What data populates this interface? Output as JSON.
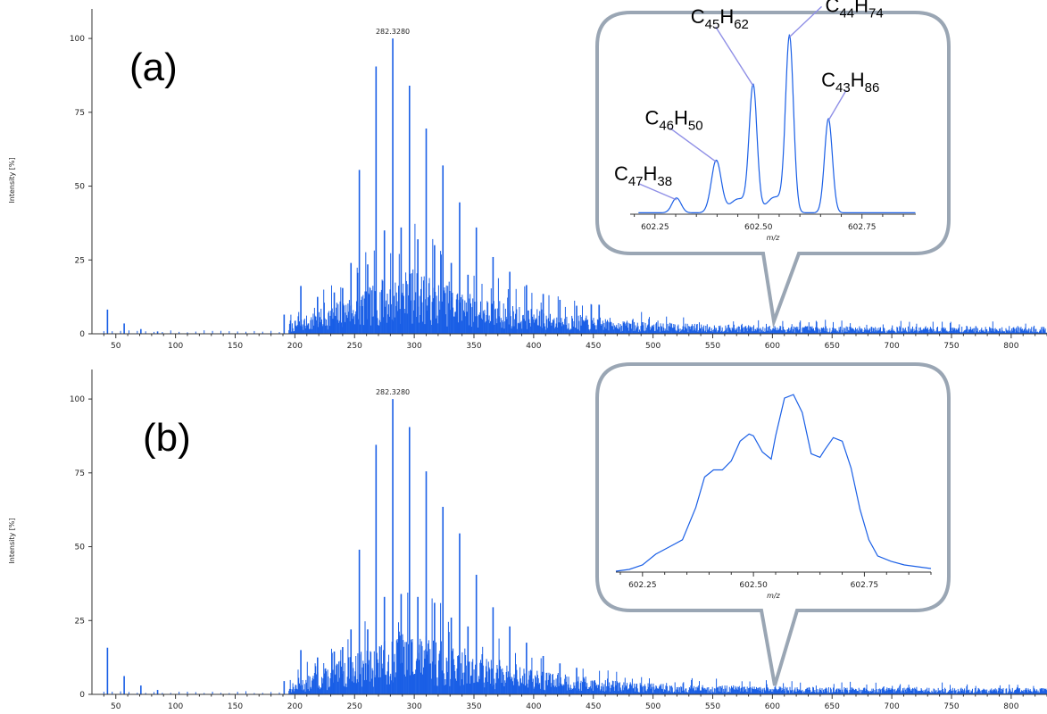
{
  "colors": {
    "spectrum": "#1a5fe6",
    "callout": "#9aa6b4",
    "leader": "#8f8fe6",
    "axis": "#333333"
  },
  "chart_data": [
    {
      "type": "bar",
      "panel_label": "(a)",
      "ylabel": "Intensity [%]",
      "xlabel": "",
      "xlim": [
        30,
        830
      ],
      "ylim": [
        0,
        110
      ],
      "xticks": [
        50,
        100,
        150,
        200,
        250,
        300,
        350,
        400,
        450,
        500,
        550,
        600,
        650,
        700,
        750,
        800
      ],
      "yticks": [
        0,
        25,
        50,
        75,
        100
      ],
      "base_peak_label": "282.3280",
      "seed": 7,
      "peaks": [
        {
          "mz": 43,
          "y": 8.2
        },
        {
          "mz": 57,
          "y": 3.5
        },
        {
          "mz": 71,
          "y": 1.6
        },
        {
          "mz": 85,
          "y": 0.8
        },
        {
          "mz": 191,
          "y": 6.5
        },
        {
          "mz": 205,
          "y": 16.2
        },
        {
          "mz": 219,
          "y": 12.5
        },
        {
          "mz": 233,
          "y": 14.0
        },
        {
          "mz": 240,
          "y": 15.5
        },
        {
          "mz": 247,
          "y": 24.0
        },
        {
          "mz": 254,
          "y": 55.5
        },
        {
          "mz": 261,
          "y": 23.5
        },
        {
          "mz": 268,
          "y": 90.5
        },
        {
          "mz": 275,
          "y": 35.0
        },
        {
          "mz": 282,
          "y": 100.0
        },
        {
          "mz": 289,
          "y": 36.0
        },
        {
          "mz": 296,
          "y": 84.0
        },
        {
          "mz": 303,
          "y": 32.0
        },
        {
          "mz": 310,
          "y": 69.5
        },
        {
          "mz": 317,
          "y": 30.0
        },
        {
          "mz": 324,
          "y": 57.0
        },
        {
          "mz": 331,
          "y": 24.0
        },
        {
          "mz": 338,
          "y": 44.5
        },
        {
          "mz": 345,
          "y": 20.0
        },
        {
          "mz": 352,
          "y": 36.0
        },
        {
          "mz": 366,
          "y": 26.0
        },
        {
          "mz": 380,
          "y": 21.0
        },
        {
          "mz": 394,
          "y": 16.5
        },
        {
          "mz": 408,
          "y": 13.5
        },
        {
          "mz": 422,
          "y": 11.5
        },
        {
          "mz": 436,
          "y": 9.5
        }
      ],
      "noise": {
        "start": 195,
        "end": 830,
        "peak_mz": 300,
        "peak_y": 22,
        "decay": 85,
        "floor": 2.6
      },
      "inset": {
        "type": "line",
        "xlabel": "m/z",
        "xlim": [
          602.19,
          602.88
        ],
        "ylim": [
          0,
          105
        ],
        "xticks": [
          602.25,
          602.5,
          602.75
        ],
        "xtick_labels": [
          "602.25",
          "602.50",
          "602.75"
        ],
        "baseline": 0.8,
        "components": [
          {
            "center": 602.302,
            "height": 8.5,
            "width": 0.011
          },
          {
            "center": 602.398,
            "height": 30,
            "width": 0.012
          },
          {
            "center": 602.487,
            "height": 72,
            "width": 0.0095
          },
          {
            "center": 602.575,
            "height": 100,
            "width": 0.0095
          },
          {
            "center": 602.669,
            "height": 54,
            "width": 0.0095
          },
          {
            "center": 602.452,
            "height": 8,
            "width": 0.02
          },
          {
            "center": 602.54,
            "height": 9,
            "width": 0.02
          }
        ],
        "annotations": [
          {
            "element": "C",
            "n1": "47",
            "element2": "H",
            "n2": "38",
            "x": 602.302
          },
          {
            "element": "C",
            "n1": "46",
            "element2": "H",
            "n2": "50",
            "x": 602.398
          },
          {
            "element": "C",
            "n1": "45",
            "element2": "H",
            "n2": "62",
            "x": 602.487
          },
          {
            "element": "C",
            "n1": "44",
            "element2": "H",
            "n2": "74",
            "x": 602.575
          },
          {
            "element": "C",
            "n1": "43",
            "element2": "H",
            "n2": "86",
            "x": 602.669
          }
        ]
      }
    },
    {
      "type": "bar",
      "panel_label": "(b)",
      "ylabel": "Intensity [%]",
      "xlabel": "",
      "xlim": [
        30,
        830
      ],
      "ylim": [
        0,
        110
      ],
      "xticks": [
        50,
        100,
        150,
        200,
        250,
        300,
        350,
        400,
        450,
        500,
        550,
        600,
        650,
        700,
        750,
        800
      ],
      "yticks": [
        0,
        25,
        50,
        75,
        100
      ],
      "base_peak_label": "282.3280",
      "seed": 13,
      "peaks": [
        {
          "mz": 43,
          "y": 15.8
        },
        {
          "mz": 57,
          "y": 6.2
        },
        {
          "mz": 71,
          "y": 3.0
        },
        {
          "mz": 85,
          "y": 1.5
        },
        {
          "mz": 191,
          "y": 4.5
        },
        {
          "mz": 205,
          "y": 15.0
        },
        {
          "mz": 219,
          "y": 12.5
        },
        {
          "mz": 233,
          "y": 14.5
        },
        {
          "mz": 240,
          "y": 16.0
        },
        {
          "mz": 247,
          "y": 22.0
        },
        {
          "mz": 254,
          "y": 49.0
        },
        {
          "mz": 261,
          "y": 22.0
        },
        {
          "mz": 268,
          "y": 84.5
        },
        {
          "mz": 275,
          "y": 33.0
        },
        {
          "mz": 282,
          "y": 100.0
        },
        {
          "mz": 289,
          "y": 34.0
        },
        {
          "mz": 296,
          "y": 90.5
        },
        {
          "mz": 303,
          "y": 33.0
        },
        {
          "mz": 310,
          "y": 75.5
        },
        {
          "mz": 317,
          "y": 31.0
        },
        {
          "mz": 324,
          "y": 63.5
        },
        {
          "mz": 331,
          "y": 26.0
        },
        {
          "mz": 338,
          "y": 54.5
        },
        {
          "mz": 345,
          "y": 23.0
        },
        {
          "mz": 352,
          "y": 40.5
        },
        {
          "mz": 366,
          "y": 29.5
        },
        {
          "mz": 380,
          "y": 23.0
        },
        {
          "mz": 394,
          "y": 17.5
        },
        {
          "mz": 408,
          "y": 13.0
        },
        {
          "mz": 422,
          "y": 10.5
        },
        {
          "mz": 436,
          "y": 9.0
        }
      ],
      "noise": {
        "start": 195,
        "end": 830,
        "peak_mz": 300,
        "peak_y": 22,
        "decay": 85,
        "floor": 2.4
      },
      "inset": {
        "type": "line",
        "xlabel": "m/z",
        "xlim": [
          602.19,
          602.9
        ],
        "ylim": [
          0,
          105
        ],
        "xticks": [
          602.25,
          602.5,
          602.75
        ],
        "xtick_labels": [
          "602.25",
          "602.50",
          "602.75"
        ],
        "x": [
          602.19,
          602.22,
          602.25,
          602.28,
          602.31,
          602.34,
          602.37,
          602.39,
          602.41,
          602.43,
          602.45,
          602.47,
          602.49,
          602.5,
          602.52,
          602.54,
          602.55,
          602.57,
          602.59,
          602.61,
          602.63,
          602.65,
          602.66,
          602.68,
          602.7,
          602.72,
          602.74,
          602.76,
          602.78,
          602.81,
          602.84,
          602.87,
          602.9
        ],
        "y": [
          0.5,
          1.5,
          4,
          10,
          14,
          18,
          36,
          53,
          57,
          57,
          62,
          73,
          77,
          76,
          67,
          63,
          76,
          97,
          99,
          89,
          66,
          64,
          68,
          75,
          73,
          58,
          35,
          18,
          9,
          6,
          4,
          3,
          2
        ]
      }
    }
  ]
}
